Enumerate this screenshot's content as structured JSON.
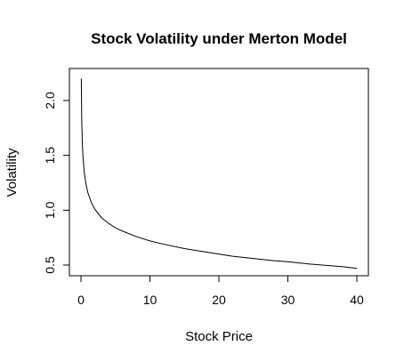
{
  "chart_data": {
    "type": "line",
    "title": "Stock Volatility under Merton Model",
    "xlabel": "Stock Price",
    "ylabel": "Volatility",
    "xlim": [
      0,
      40
    ],
    "ylim": [
      0.45,
      2.2
    ],
    "xticks": [
      0,
      10,
      20,
      30,
      40
    ],
    "xtick_labels": [
      "0",
      "10",
      "20",
      "30",
      "40"
    ],
    "yticks": [
      0.5,
      1.0,
      1.5,
      2.0
    ],
    "ytick_labels": [
      "0.5",
      "1.0",
      "1.5",
      "2.0"
    ],
    "grid": false,
    "series": [
      {
        "color": "#000000",
        "x": [
          0.05,
          0.1,
          0.2,
          0.3,
          0.5,
          0.75,
          1,
          1.5,
          2,
          3,
          4,
          5,
          6,
          8,
          10,
          12,
          15,
          18,
          20,
          22,
          25,
          28,
          30,
          33,
          35,
          38,
          40
        ],
        "y": [
          2.2,
          1.85,
          1.6,
          1.48,
          1.33,
          1.23,
          1.16,
          1.07,
          1.01,
          0.93,
          0.88,
          0.84,
          0.81,
          0.76,
          0.72,
          0.69,
          0.65,
          0.62,
          0.6,
          0.58,
          0.56,
          0.54,
          0.53,
          0.51,
          0.5,
          0.485,
          0.47
        ]
      }
    ]
  }
}
